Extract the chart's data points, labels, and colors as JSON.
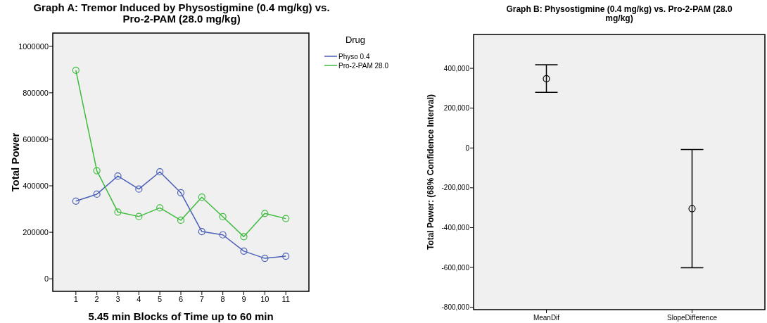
{
  "chart_data": [
    {
      "type": "line",
      "title": "Graph A: Tremor Induced by Physostigmine (0.4 mg/kg) vs. Pro-2-PAM (28.0 mg/kg)",
      "xlabel": "5.45 min Blocks of Time up to 60 min",
      "ylabel": "Total Power",
      "legend_title": "Drug",
      "legend": "right",
      "marker": "circle",
      "grid": false,
      "categories": [
        "1",
        "2",
        "3",
        "4",
        "5",
        "6",
        "7",
        "8",
        "9",
        "10",
        "11"
      ],
      "ylim": [
        -54000,
        1057000
      ],
      "yticks": [
        0,
        200000,
        400000,
        600000,
        800000,
        1000000
      ],
      "series": [
        {
          "name": "Physo 0.4",
          "color": "#4a5fb8",
          "values": [
            334000,
            364000,
            442000,
            386000,
            460000,
            370000,
            203000,
            189000,
            119000,
            88000,
            97000
          ]
        },
        {
          "name": "Pro-2-PAM 28.0",
          "color": "#3dbb3d",
          "values": [
            897000,
            465000,
            287000,
            268000,
            305000,
            252000,
            351000,
            267000,
            181000,
            281000,
            259000
          ]
        }
      ]
    },
    {
      "type": "scatter",
      "title": "Graph B: Physostigmine (0.4 mg/kg) vs. Pro-2-PAM (28.0 mg/kg)",
      "ylabel": "Total Power: (68% Confidence Interval)",
      "marker": "circle",
      "grid": false,
      "categories": [
        "MeanDif",
        "SlopeDifference"
      ],
      "ylim": [
        -812000,
        570000
      ],
      "yticks": [
        {
          "value": -800000,
          "label": "-800,000"
        },
        {
          "value": -600000,
          "label": "-600,000"
        },
        {
          "value": -400000,
          "label": "-400,000"
        },
        {
          "value": -200000,
          "label": "-200,000"
        },
        0,
        {
          "value": 200000,
          "label": "200,000"
        },
        {
          "value": 400000,
          "label": "400,000"
        }
      ],
      "series": [
        {
          "color": "#000000",
          "values": [
            348000,
            -305000
          ],
          "errors": [
            [
              279000,
              418000
            ],
            [
              -602000,
              -8000
            ]
          ]
        }
      ]
    }
  ]
}
